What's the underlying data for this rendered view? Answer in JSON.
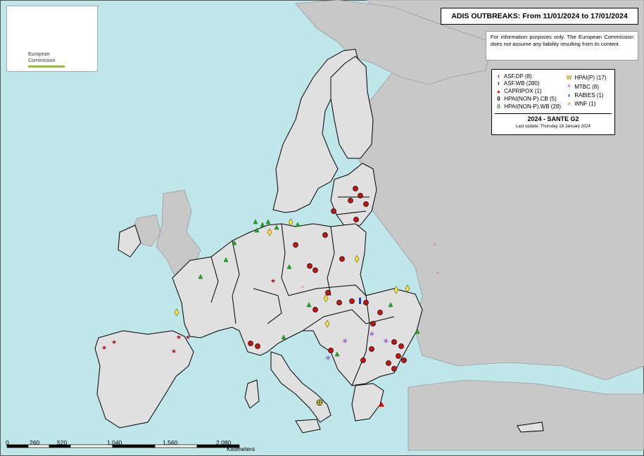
{
  "title": "ADIS OUTBREAKS: From 11/01/2024 to 17/01/2024",
  "disclaimer": "For information purposes only. The European Commission does not assume any liability resulting from its content.",
  "logo": {
    "line1": "European",
    "line2": "Commission",
    "flag_color": "#003399",
    "star_color": "#ffcc00"
  },
  "legend": {
    "left": [
      {
        "symbol": "ᵻ",
        "label": "ASF.DP (8)",
        "color": "#7b2fbe"
      },
      {
        "symbol": "ᵻ",
        "label": "ASF.WB (280)",
        "color": "#7a0f0f"
      },
      {
        "symbol": "▲",
        "label": "CAPRIPOX (1)",
        "color": "#e00000"
      },
      {
        "symbol": "0",
        "label": "HPAI(NON-P).CB (5)",
        "color": "#000000"
      },
      {
        "symbol": "0",
        "label": "HPAI(NON-P).WB (28)",
        "color": "#1a8a1a"
      }
    ],
    "right": [
      {
        "symbol": "W",
        "label": "HPAI(P) (17)",
        "color": "#b59b00"
      },
      {
        "symbol": "^",
        "label": "MTBC (8)",
        "color": "#d04090"
      },
      {
        "symbol": "ᵻ",
        "label": "RABIES (1)",
        "color": "#1040c0"
      },
      {
        "symbol": ">",
        "label": "WNF (1)",
        "color": "#c08000"
      }
    ],
    "footer_title": "2024 - SANTE G2",
    "last_update": "Last update: Thursday 18 January 2024"
  },
  "scale_bar": {
    "labels": [
      "0",
      "260",
      "520",
      "1,040",
      "1,560",
      "2,080"
    ],
    "unit": "Kilometers"
  },
  "colors": {
    "sea": "#bfe6e8",
    "eu_land": "#e0e0e0",
    "non_eu_land": "#c8c8c8",
    "border": "#000000"
  }
}
